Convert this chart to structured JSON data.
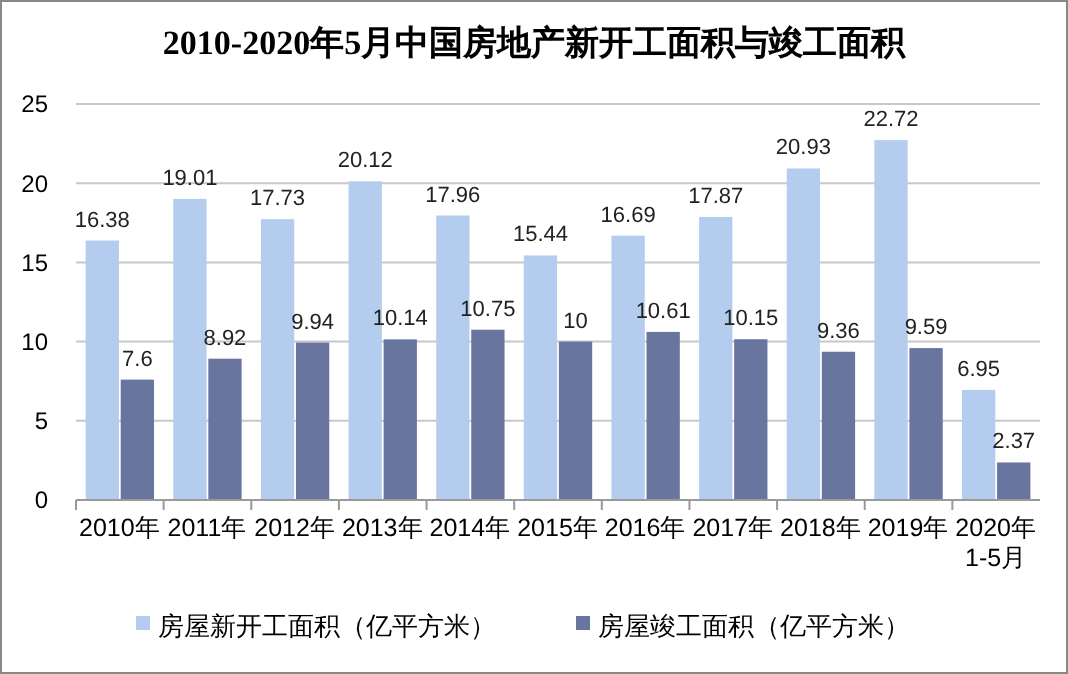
{
  "chart_data": {
    "type": "bar",
    "title": "2010-2020年5月中国房地产新开工面积与竣工面积",
    "categories": [
      "2010年",
      "2011年",
      "2012年",
      "2013年",
      "2014年",
      "2015年",
      "2016年",
      "2017年",
      "2018年",
      "2019年",
      "2020年1-5月"
    ],
    "series": [
      {
        "name": "房屋新开工面积（亿平方米）",
        "color": "#b4cdee",
        "values": [
          16.38,
          19.01,
          17.73,
          20.12,
          17.96,
          15.44,
          16.69,
          17.87,
          20.93,
          22.72,
          6.95
        ]
      },
      {
        "name": "房屋竣工面积（亿平方米）",
        "color": "#68759f",
        "values": [
          7.6,
          8.92,
          9.94,
          10.14,
          10.75,
          10,
          10.61,
          10.15,
          9.36,
          9.59,
          2.37
        ]
      }
    ],
    "ylim": [
      0,
      25
    ],
    "yticks": [
      0,
      5,
      10,
      15,
      20,
      25
    ],
    "grid": "y",
    "legend": "bottom",
    "data_labels": true
  }
}
